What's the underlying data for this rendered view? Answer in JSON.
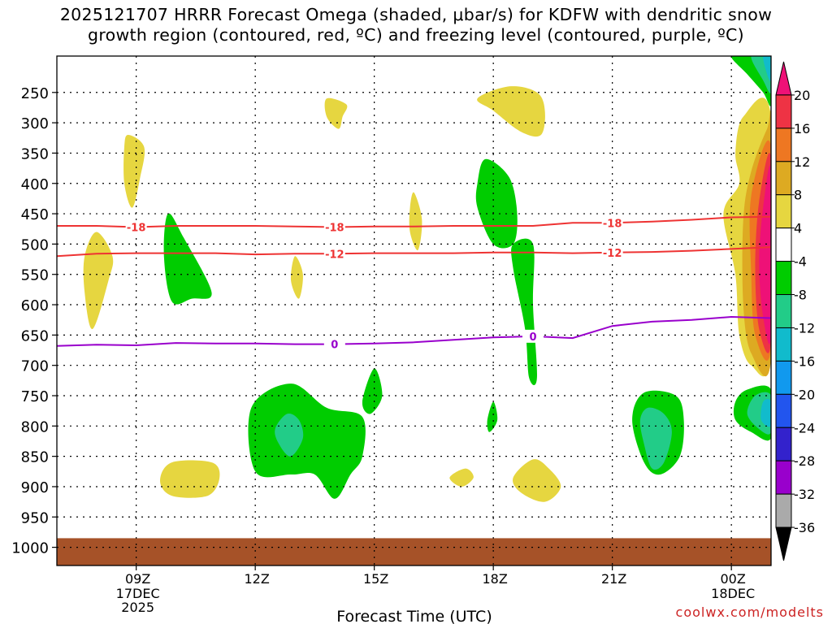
{
  "chart_data": {
    "type": "heatmap",
    "title_line1": "2025121707 HRRR Forecast Omega (shaded, μbar/s) for KDFW with dendritic snow",
    "title_line2": "growth region (contoured, red, ºC) and freezing level (contoured, purple, ºC)",
    "xlabel": "Forecast Time (UTC)",
    "ylabel": "",
    "x_ticks": [
      {
        "hour": 9,
        "label": "09Z",
        "sub1": "17DEC",
        "sub2": "2025"
      },
      {
        "hour": 12,
        "label": "12Z",
        "sub1": "",
        "sub2": ""
      },
      {
        "hour": 15,
        "label": "15Z",
        "sub1": "",
        "sub2": ""
      },
      {
        "hour": 18,
        "label": "18Z",
        "sub1": "",
        "sub2": ""
      },
      {
        "hour": 21,
        "label": "21Z",
        "sub1": "",
        "sub2": ""
      },
      {
        "hour": 24,
        "label": "00Z",
        "sub1": "18DEC",
        "sub2": ""
      }
    ],
    "xlim": [
      7,
      25
    ],
    "y_ticks": [
      250,
      300,
      350,
      400,
      450,
      500,
      550,
      600,
      650,
      700,
      750,
      800,
      850,
      900,
      950,
      1000
    ],
    "ylim": [
      1030,
      190
    ],
    "colorbar": {
      "labels": [
        "20",
        "16",
        "12",
        "8",
        "4",
        "-4",
        "-8",
        "-12",
        "-16",
        "-20",
        "-24",
        "-28",
        "-32",
        "-36"
      ],
      "colors": [
        "#ee1177",
        "#ee3344",
        "#ee7722",
        "#ddaa22",
        "#e6d640",
        "#ffffff",
        "#00cc00",
        "#22cc88",
        "#11bbcc",
        "#1199ee",
        "#2255ee",
        "#3322cc",
        "#9900cc",
        "#aaaaaa",
        "#000000"
      ]
    },
    "omega_regions": [
      {
        "level": "4",
        "color": "#e6d640",
        "points": [
          [
            8,
            480
          ],
          [
            8.4,
            520
          ],
          [
            8.3,
            560
          ],
          [
            7.9,
            640
          ],
          [
            7.7,
            580
          ],
          [
            7.7,
            520
          ]
        ]
      },
      {
        "level": "4",
        "color": "#e6d640",
        "points": [
          [
            8.8,
            320
          ],
          [
            9.2,
            340
          ],
          [
            9.1,
            390
          ],
          [
            8.9,
            440
          ],
          [
            8.7,
            400
          ],
          [
            8.7,
            340
          ]
        ]
      },
      {
        "level": "4",
        "color": "#e6d640",
        "points": [
          [
            13.8,
            260
          ],
          [
            14.3,
            270
          ],
          [
            14.2,
            290
          ],
          [
            14.1,
            310
          ],
          [
            13.8,
            290
          ]
        ]
      },
      {
        "level": "4",
        "color": "#e6d640",
        "points": [
          [
            16,
            415
          ],
          [
            16.2,
            460
          ],
          [
            16.1,
            510
          ],
          [
            15.9,
            480
          ],
          [
            15.9,
            440
          ]
        ]
      },
      {
        "level": "4",
        "color": "#e6d640",
        "points": [
          [
            13,
            520
          ],
          [
            13.2,
            550
          ],
          [
            13.1,
            590
          ],
          [
            12.9,
            560
          ]
        ]
      },
      {
        "level": "4",
        "color": "#e6d640",
        "points": [
          [
            18.4,
            240
          ],
          [
            19.1,
            250
          ],
          [
            19.3,
            280
          ],
          [
            19.2,
            320
          ],
          [
            18.7,
            315
          ],
          [
            18.0,
            280
          ],
          [
            17.6,
            260
          ]
        ]
      },
      {
        "level": "4",
        "color": "#e6d640",
        "points": [
          [
            9.9,
            860
          ],
          [
            10.9,
            860
          ],
          [
            11.1,
            885
          ],
          [
            10.8,
            915
          ],
          [
            9.9,
            915
          ],
          [
            9.6,
            890
          ]
        ]
      },
      {
        "level": "4",
        "color": "#e6d640",
        "points": [
          [
            19.0,
            855
          ],
          [
            19.4,
            870
          ],
          [
            19.7,
            900
          ],
          [
            19.3,
            925
          ],
          [
            18.7,
            910
          ],
          [
            18.5,
            885
          ]
        ]
      },
      {
        "level": "4",
        "color": "#e6d640",
        "points": [
          [
            17.3,
            870
          ],
          [
            17.5,
            885
          ],
          [
            17.2,
            900
          ],
          [
            16.9,
            885
          ]
        ]
      },
      {
        "level": "4",
        "color": "#e6d640",
        "points": [
          [
            24.3,
            290
          ],
          [
            25,
            290
          ],
          [
            25,
            680
          ],
          [
            24.5,
            700
          ],
          [
            24.2,
            650
          ],
          [
            24.1,
            550
          ],
          [
            23.8,
            450
          ],
          [
            24.2,
            400
          ],
          [
            24.1,
            350
          ]
        ]
      },
      {
        "level": "8",
        "color": "#ddaa22",
        "points": [
          [
            24.9,
            310
          ],
          [
            25,
            310
          ],
          [
            25,
            690
          ],
          [
            24.5,
            680
          ],
          [
            24.3,
            600
          ],
          [
            24.3,
            460
          ],
          [
            24.5,
            380
          ]
        ]
      },
      {
        "level": "12",
        "color": "#ee7722",
        "points": [
          [
            25,
            340
          ],
          [
            25,
            670
          ],
          [
            24.6,
            650
          ],
          [
            24.5,
            550
          ],
          [
            24.5,
            420
          ]
        ]
      },
      {
        "level": "16",
        "color": "#ee3344",
        "points": [
          [
            25,
            360
          ],
          [
            25,
            660
          ],
          [
            24.7,
            640
          ],
          [
            24.6,
            540
          ],
          [
            24.7,
            430
          ]
        ]
      },
      {
        "level": "20",
        "color": "#ee1177",
        "points": [
          [
            25,
            380
          ],
          [
            25,
            650
          ],
          [
            24.8,
            620
          ],
          [
            24.7,
            530
          ],
          [
            24.8,
            440
          ]
        ]
      },
      {
        "level": "4",
        "color": "#e6d640",
        "points": [
          [
            19.05,
            870
          ],
          [
            19.25,
            880
          ],
          [
            19.2,
            900
          ],
          [
            19.0,
            905
          ],
          [
            18.85,
            890
          ]
        ]
      },
      {
        "level": "-4",
        "color": "#00cc00",
        "points": [
          [
            9.8,
            450
          ],
          [
            10.2,
            490
          ],
          [
            10.9,
            580
          ],
          [
            10.4,
            590
          ],
          [
            9.9,
            595
          ],
          [
            9.7,
            520
          ]
        ]
      },
      {
        "level": "-4",
        "color": "#00cc00",
        "points": [
          [
            17.8,
            360
          ],
          [
            18.4,
            390
          ],
          [
            18.6,
            450
          ],
          [
            18.5,
            500
          ],
          [
            18.0,
            500
          ],
          [
            17.6,
            440
          ],
          [
            17.6,
            400
          ]
        ]
      },
      {
        "level": "-4",
        "color": "#00cc00",
        "points": [
          [
            18.5,
            500
          ],
          [
            19.0,
            500
          ],
          [
            19.0,
            600
          ],
          [
            19.1,
            720
          ],
          [
            18.9,
            720
          ],
          [
            18.8,
            640
          ],
          [
            18.5,
            540
          ]
        ]
      },
      {
        "level": "-4",
        "color": "#00cc00",
        "points": [
          [
            11.9,
            770
          ],
          [
            12.9,
            730
          ],
          [
            13.8,
            770
          ],
          [
            14.7,
            785
          ],
          [
            14.7,
            850
          ],
          [
            14.4,
            880
          ],
          [
            14.0,
            920
          ],
          [
            13.5,
            880
          ],
          [
            12.9,
            880
          ],
          [
            12.0,
            875
          ]
        ]
      },
      {
        "level": "-4",
        "color": "#00cc00",
        "points": [
          [
            15.0,
            705
          ],
          [
            15.2,
            750
          ],
          [
            14.9,
            780
          ],
          [
            14.7,
            760
          ]
        ]
      },
      {
        "level": "-4",
        "color": "#00cc00",
        "points": [
          [
            18.0,
            760
          ],
          [
            18.1,
            790
          ],
          [
            17.9,
            810
          ],
          [
            17.85,
            790
          ]
        ]
      },
      {
        "level": "-4",
        "color": "#00cc00",
        "points": [
          [
            21.8,
            745
          ],
          [
            22.6,
            750
          ],
          [
            22.8,
            790
          ],
          [
            22.7,
            850
          ],
          [
            22.2,
            880
          ],
          [
            21.8,
            860
          ],
          [
            21.5,
            790
          ]
        ]
      },
      {
        "level": "-4",
        "color": "#00cc00",
        "points": [
          [
            24.4,
            740
          ],
          [
            25,
            740
          ],
          [
            25,
            820
          ],
          [
            24.5,
            810
          ],
          [
            24.1,
            790
          ],
          [
            24.1,
            760
          ]
        ]
      },
      {
        "level": "-4",
        "color": "#00cc00",
        "points": [
          [
            24.0,
            190
          ],
          [
            24.6,
            190
          ],
          [
            25,
            190
          ],
          [
            25,
            270
          ],
          [
            24.8,
            250
          ],
          [
            24.4,
            220
          ]
        ]
      },
      {
        "level": "-8",
        "color": "#22cc88",
        "points": [
          [
            12.8,
            780
          ],
          [
            13.1,
            790
          ],
          [
            13.2,
            820
          ],
          [
            12.9,
            850
          ],
          [
            12.6,
            830
          ],
          [
            12.5,
            805
          ]
        ]
      },
      {
        "level": "-8",
        "color": "#22cc88",
        "points": [
          [
            21.9,
            770
          ],
          [
            22.3,
            780
          ],
          [
            22.5,
            810
          ],
          [
            22.3,
            860
          ],
          [
            22.0,
            870
          ],
          [
            21.8,
            830
          ],
          [
            21.7,
            790
          ]
        ]
      },
      {
        "level": "-8",
        "color": "#22cc88",
        "points": [
          [
            24.6,
            750
          ],
          [
            25,
            750
          ],
          [
            25,
            810
          ],
          [
            24.7,
            805
          ],
          [
            24.4,
            780
          ]
        ]
      },
      {
        "level": "-8",
        "color": "#22cc88",
        "points": [
          [
            24.5,
            190
          ],
          [
            25,
            190
          ],
          [
            25,
            250
          ],
          [
            24.8,
            230
          ]
        ]
      },
      {
        "level": "-12",
        "color": "#11bbcc",
        "points": [
          [
            24.8,
            760
          ],
          [
            25,
            760
          ],
          [
            25,
            800
          ],
          [
            24.75,
            790
          ]
        ]
      },
      {
        "level": "-12",
        "color": "#11bbcc",
        "points": [
          [
            24.8,
            190
          ],
          [
            25,
            190
          ],
          [
            25,
            230
          ],
          [
            24.9,
            220
          ]
        ]
      }
    ],
    "contours": [
      {
        "name": "dgz-minus18",
        "label": "-18",
        "color": "#ee3333",
        "x": [
          7,
          8,
          9,
          10,
          11,
          12,
          13,
          14,
          15,
          16,
          17,
          18,
          19,
          20,
          21,
          22,
          23,
          24,
          25
        ],
        "y": [
          470,
          470,
          472,
          470,
          470,
          470,
          471,
          472,
          471,
          471,
          470,
          470,
          470,
          465,
          465,
          463,
          460,
          456,
          455
        ],
        "label_x": [
          9,
          14,
          21
        ]
      },
      {
        "name": "dgz-minus12",
        "label": "-12",
        "color": "#ee3333",
        "x": [
          7,
          8,
          9,
          10,
          11,
          12,
          13,
          14,
          15,
          16,
          17,
          18,
          19,
          20,
          21,
          22,
          23,
          24,
          25
        ],
        "y": [
          520,
          516,
          515,
          515,
          515,
          517,
          516,
          516,
          515,
          515,
          515,
          514,
          514,
          515,
          514,
          513,
          511,
          508,
          505
        ],
        "label_x": [
          14,
          21
        ]
      },
      {
        "name": "freezing-level",
        "label": "0",
        "color": "#9900cc",
        "x": [
          7,
          8,
          9,
          10,
          11,
          12,
          13,
          14,
          15,
          16,
          17,
          18,
          19,
          20,
          21,
          22,
          23,
          24,
          25
        ],
        "y": [
          668,
          666,
          667,
          663,
          664,
          664,
          665,
          665,
          664,
          662,
          658,
          654,
          652,
          655,
          635,
          628,
          625,
          620,
          622
        ],
        "label_x": [
          14,
          19
        ]
      }
    ],
    "ground": {
      "from_level": 985,
      "to_level": 1030,
      "color": "#a65228"
    },
    "credit": "coolwx.com/modelts"
  }
}
